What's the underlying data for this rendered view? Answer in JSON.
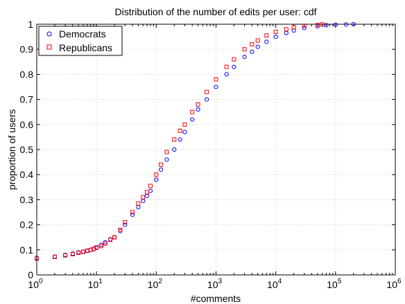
{
  "chart_data": {
    "type": "scatter",
    "title": "Distribution of the number of edits per user: cdf",
    "xlabel": "#comments",
    "ylabel": "proportion of users",
    "xscale": "log",
    "xlim": [
      1,
      1000000
    ],
    "ylim": [
      0,
      1
    ],
    "grid": true,
    "legend": "top-left",
    "x_ticks": [
      {
        "base": "10",
        "exp": "0"
      },
      {
        "base": "10",
        "exp": "1"
      },
      {
        "base": "10",
        "exp": "2"
      },
      {
        "base": "10",
        "exp": "3"
      },
      {
        "base": "10",
        "exp": "4"
      },
      {
        "base": "10",
        "exp": "5"
      },
      {
        "base": "10",
        "exp": "6"
      }
    ],
    "y_ticks": [
      "0",
      "0.1",
      "0.2",
      "0.3",
      "0.4",
      "0.5",
      "0.6",
      "0.7",
      "0.8",
      "0.9",
      "1"
    ],
    "series": [
      {
        "name": "Democrats",
        "color": "#0000ff",
        "marker": "circle",
        "points": [
          [
            1,
            0.068
          ],
          [
            2,
            0.073
          ],
          [
            3,
            0.08
          ],
          [
            4,
            0.085
          ],
          [
            5,
            0.09
          ],
          [
            6,
            0.093
          ],
          [
            7,
            0.097
          ],
          [
            8,
            0.1
          ],
          [
            9,
            0.103
          ],
          [
            10,
            0.108
          ],
          [
            12,
            0.12
          ],
          [
            14,
            0.13
          ],
          [
            17,
            0.142
          ],
          [
            20,
            0.15
          ],
          [
            25,
            0.175
          ],
          [
            30,
            0.2
          ],
          [
            40,
            0.24
          ],
          [
            50,
            0.27
          ],
          [
            60,
            0.295
          ],
          [
            70,
            0.315
          ],
          [
            80,
            0.335
          ],
          [
            100,
            0.38
          ],
          [
            120,
            0.42
          ],
          [
            150,
            0.46
          ],
          [
            200,
            0.5
          ],
          [
            250,
            0.54
          ],
          [
            300,
            0.57
          ],
          [
            400,
            0.62
          ],
          [
            500,
            0.66
          ],
          [
            700,
            0.7
          ],
          [
            1000,
            0.75
          ],
          [
            1500,
            0.8
          ],
          [
            2000,
            0.83
          ],
          [
            3000,
            0.87
          ],
          [
            4000,
            0.89
          ],
          [
            5000,
            0.91
          ],
          [
            7000,
            0.93
          ],
          [
            10000,
            0.95
          ],
          [
            15000,
            0.965
          ],
          [
            20000,
            0.975
          ],
          [
            30000,
            0.985
          ],
          [
            50000,
            0.992
          ],
          [
            70000,
            0.996
          ],
          [
            100000,
            0.998
          ],
          [
            150000,
            0.999
          ],
          [
            200000,
            1.0
          ]
        ]
      },
      {
        "name": "Republicans",
        "color": "#ff0000",
        "marker": "square",
        "points": [
          [
            1,
            0.065
          ],
          [
            2,
            0.072
          ],
          [
            3,
            0.078
          ],
          [
            4,
            0.083
          ],
          [
            5,
            0.088
          ],
          [
            6,
            0.092
          ],
          [
            7,
            0.096
          ],
          [
            8,
            0.1
          ],
          [
            9,
            0.104
          ],
          [
            10,
            0.11
          ],
          [
            12,
            0.115
          ],
          [
            14,
            0.125
          ],
          [
            17,
            0.14
          ],
          [
            20,
            0.15
          ],
          [
            25,
            0.18
          ],
          [
            30,
            0.21
          ],
          [
            40,
            0.25
          ],
          [
            50,
            0.285
          ],
          [
            60,
            0.31
          ],
          [
            70,
            0.33
          ],
          [
            80,
            0.355
          ],
          [
            100,
            0.4
          ],
          [
            120,
            0.44
          ],
          [
            150,
            0.49
          ],
          [
            200,
            0.54
          ],
          [
            250,
            0.575
          ],
          [
            300,
            0.6
          ],
          [
            400,
            0.65
          ],
          [
            500,
            0.68
          ],
          [
            700,
            0.73
          ],
          [
            1000,
            0.78
          ],
          [
            1500,
            0.83
          ],
          [
            2000,
            0.86
          ],
          [
            3000,
            0.9
          ],
          [
            4000,
            0.92
          ],
          [
            5000,
            0.935
          ],
          [
            7000,
            0.955
          ],
          [
            10000,
            0.97
          ],
          [
            15000,
            0.98
          ],
          [
            20000,
            0.988
          ],
          [
            30000,
            0.994
          ],
          [
            50000,
            0.997
          ],
          [
            60000,
            0.999
          ]
        ]
      }
    ]
  }
}
